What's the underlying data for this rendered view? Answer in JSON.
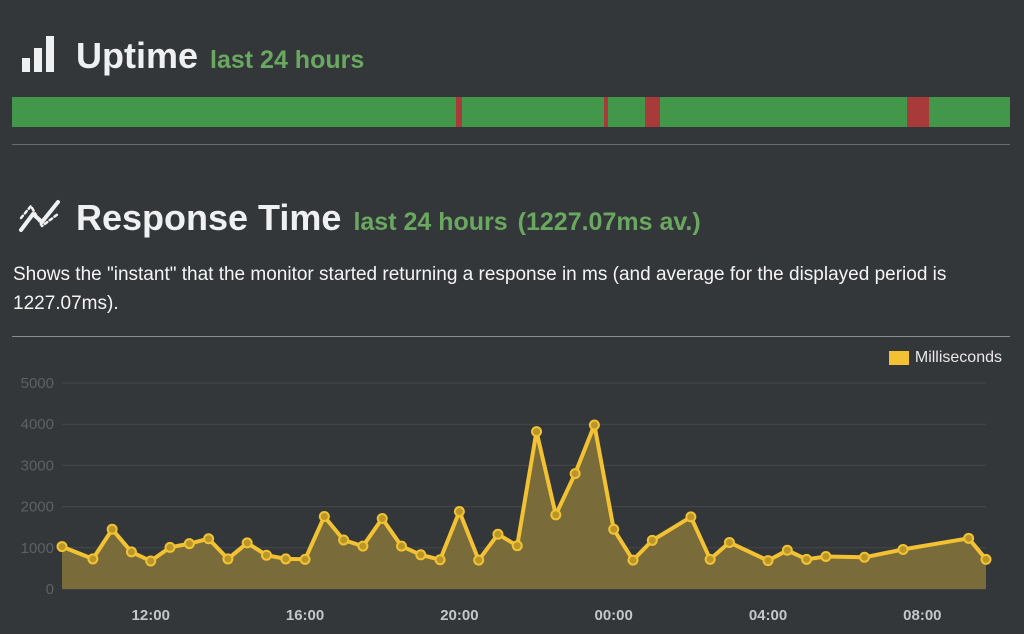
{
  "uptime": {
    "title": "Uptime",
    "subtitle": "last 24 hours",
    "icon": "bar-chart-icon",
    "colors": {
      "up": "#43974a",
      "down": "#a93a3a"
    },
    "down_segments": [
      {
        "start_frac": 0.4445,
        "end_frac": 0.4505
      },
      {
        "start_frac": 0.5935,
        "end_frac": 0.5975
      },
      {
        "start_frac": 0.6345,
        "end_frac": 0.6495
      },
      {
        "start_frac": 0.8965,
        "end_frac": 0.9185
      }
    ]
  },
  "response_time": {
    "title": "Response Time",
    "subtitle": "last 24 hours",
    "average_text": "(1227.07ms av.)",
    "icon": "line-chart-icon",
    "description": "Shows the \"instant\" that the monitor started returning a response in ms (and average for the displayed period is 1227.07ms)."
  },
  "chart_data": {
    "type": "area",
    "xlabel": "",
    "ylabel": "",
    "ylim": [
      0,
      5000
    ],
    "yticks": [
      0,
      1000,
      2000,
      3000,
      4000,
      5000
    ],
    "xlim": [
      9.7,
      33.65
    ],
    "xticks": [
      {
        "value": 12,
        "label": "12:00"
      },
      {
        "value": 16,
        "label": "16:00"
      },
      {
        "value": 20,
        "label": "20:00"
      },
      {
        "value": 24,
        "label": "00:00"
      },
      {
        "value": 28,
        "label": "04:00"
      },
      {
        "value": 32,
        "label": "08:00"
      }
    ],
    "grid": true,
    "legend_position": "top-right",
    "colors": {
      "line": "#f2c233",
      "fill": "#7a6b3a"
    },
    "series": [
      {
        "name": "Milliseconds",
        "x": [
          9.7,
          10.5,
          11.0,
          11.5,
          12.0,
          12.5,
          13.0,
          13.5,
          14.0,
          14.5,
          15.0,
          15.5,
          16.0,
          16.5,
          17.0,
          17.5,
          18.0,
          18.5,
          19.0,
          19.5,
          20.0,
          20.5,
          21.0,
          21.5,
          22.0,
          22.5,
          23.0,
          23.5,
          24.0,
          24.5,
          25.0,
          26.0,
          26.5,
          27.0,
          28.0,
          28.5,
          29.0,
          29.5,
          30.5,
          31.5,
          33.2,
          33.65
        ],
        "values": [
          1030,
          730,
          1450,
          900,
          680,
          1010,
          1100,
          1220,
          730,
          1120,
          820,
          730,
          720,
          1760,
          1190,
          1040,
          1710,
          1040,
          830,
          710,
          1880,
          700,
          1330,
          1050,
          3820,
          1800,
          2800,
          3980,
          1450,
          700,
          1180,
          1750,
          720,
          1130,
          690,
          940,
          720,
          790,
          770,
          960,
          1230,
          720
        ]
      }
    ]
  }
}
